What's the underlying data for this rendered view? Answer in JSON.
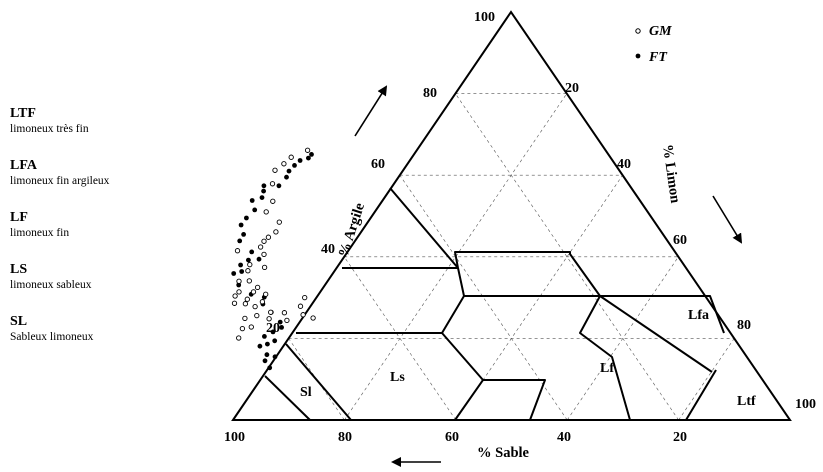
{
  "legend": [
    {
      "code": "LTF",
      "description": "limoneux très fin"
    },
    {
      "code": "LFA",
      "description": "limoneux fin argileux"
    },
    {
      "code": "LF",
      "description": "limoneux fin"
    },
    {
      "code": "LS",
      "description": "limoneux sableux"
    },
    {
      "code": "SL",
      "description": "Sableux limoneux"
    }
  ],
  "axes": {
    "clay_title": "% Argile",
    "silt_title": "% Limon",
    "sand_title": "% Sable",
    "apex_label": "100",
    "clay_ticks": [
      "20",
      "40",
      "60",
      "80"
    ],
    "silt_ticks": [
      "20",
      "40",
      "60",
      "80",
      "100"
    ],
    "sand_ticks": [
      "100",
      "80",
      "60",
      "40",
      "20"
    ]
  },
  "zones": {
    "sl": "Sl",
    "ls": "Ls",
    "lf": "Lf",
    "lfa": "Lfa",
    "ltf": "Ltf"
  },
  "series_key": [
    {
      "name": "GM",
      "marker": "open-circle"
    },
    {
      "name": "FT",
      "marker": "filled-circle"
    }
  ],
  "samples": {
    "GM": [
      [
        88.9,
        20.1
      ],
      [
        87.1,
        22.4
      ],
      [
        85.4,
        24.9
      ],
      [
        85.3,
        22.8
      ],
      [
        85.4,
        28.6
      ],
      [
        84.4,
        30.4
      ],
      [
        83.5,
        28.5
      ],
      [
        82.9,
        25.6
      ],
      [
        82.1,
        27.8
      ],
      [
        82.6,
        29.6
      ],
      [
        83.2,
        31.4
      ],
      [
        81.1,
        24.8
      ],
      [
        80.0,
        26.4
      ],
      [
        80.2,
        29.0
      ],
      [
        80.6,
        31.4
      ],
      [
        79.3,
        32.5
      ],
      [
        78.7,
        30.8
      ],
      [
        78.1,
        24.4
      ],
      [
        77.6,
        26.3
      ],
      [
        74.5,
        25.8
      ],
      [
        73.1,
        25.0
      ],
      [
        73.9,
        27.9
      ],
      [
        72.1,
        30.0
      ],
      [
        81.9,
        34.0
      ],
      [
        80.0,
        34.1
      ],
      [
        79.0,
        36.6
      ],
      [
        78.4,
        41.5
      ],
      [
        77.9,
        38.1
      ],
      [
        75.6,
        37.4
      ],
      [
        74.1,
        40.6
      ],
      [
        73.8,
        42.4
      ],
      [
        72.5,
        43.8
      ],
      [
        71.2,
        44.8
      ],
      [
        69.2,
        46.1
      ],
      [
        67.4,
        48.5
      ],
      [
        68.5,
        51.0
      ],
      [
        66.0,
        53.6
      ],
      [
        63.9,
        57.9
      ],
      [
        61.8,
        61.2
      ],
      [
        59.4,
        62.8
      ],
      [
        57.3,
        64.4
      ],
      [
        53.5,
        66.1
      ]
    ],
    "FT": [
      [
        87.0,
        12.8
      ],
      [
        87.0,
        14.5
      ],
      [
        86.1,
        18.1
      ],
      [
        85.9,
        16.0
      ],
      [
        84.7,
        15.5
      ],
      [
        84.5,
        18.6
      ],
      [
        84.1,
        20.5
      ],
      [
        82.8,
        19.4
      ],
      [
        82.0,
        21.6
      ],
      [
        79.9,
        22.7
      ],
      [
        79.5,
        24.0
      ],
      [
        79.9,
        26.4
      ],
      [
        80.4,
        28.4
      ],
      [
        79.3,
        30.1
      ],
      [
        81.3,
        30.8
      ],
      [
        82.4,
        33.1
      ],
      [
        81.9,
        35.9
      ],
      [
        80.2,
        36.4
      ],
      [
        79.6,
        38.0
      ],
      [
        77.6,
        39.2
      ],
      [
        75.6,
        39.4
      ],
      [
        76.0,
        41.2
      ],
      [
        76.8,
        43.9
      ],
      [
        75.3,
        45.5
      ],
      [
        74.6,
        47.8
      ],
      [
        72.8,
        49.5
      ],
      [
        70.3,
        51.5
      ],
      [
        69.6,
        53.8
      ],
      [
        67.5,
        54.5
      ],
      [
        66.4,
        56.1
      ],
      [
        65.7,
        57.4
      ],
      [
        63.0,
        57.4
      ],
      [
        60.6,
        59.5
      ],
      [
        59.4,
        61.0
      ],
      [
        57.7,
        62.4
      ],
      [
        56.1,
        63.6
      ],
      [
        54.3,
        64.2
      ],
      [
        53.3,
        65.1
      ]
    ]
  }
}
